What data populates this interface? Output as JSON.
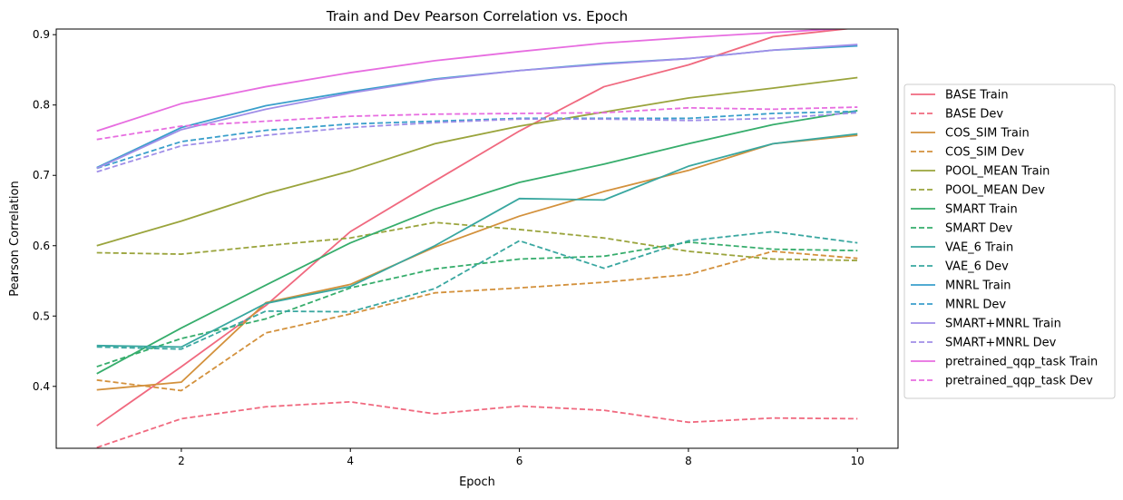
{
  "chart_data": {
    "type": "line",
    "title": "Train and Dev Pearson Correlation vs. Epoch",
    "xlabel": "Epoch",
    "ylabel": "Pearson Correlation",
    "xlim": [
      0.52,
      10.48
    ],
    "ylim": [
      0.312,
      0.908
    ],
    "xticks": [
      2,
      4,
      6,
      8,
      10
    ],
    "xtick_labels": [
      "2",
      "4",
      "6",
      "8",
      "10"
    ],
    "yticks": [
      0.4,
      0.5,
      0.6,
      0.7,
      0.8,
      0.9
    ],
    "ytick_labels": [
      "0.4",
      "0.5",
      "0.6",
      "0.7",
      "0.8",
      "0.9"
    ],
    "grid": false,
    "legend_position": "outside-right",
    "x": [
      1,
      2,
      3,
      4,
      5,
      6,
      7,
      8,
      9,
      10
    ],
    "series": [
      {
        "name": "BASE Train",
        "color": "#f0697f",
        "dash": "solid",
        "values": [
          0.344,
          0.428,
          0.515,
          0.62,
          0.692,
          0.763,
          0.826,
          0.857,
          0.897,
          0.91
        ]
      },
      {
        "name": "BASE Dev",
        "color": "#f0697f",
        "dash": "dashed",
        "values": [
          0.313,
          0.354,
          0.371,
          0.378,
          0.361,
          0.372,
          0.366,
          0.349,
          0.355,
          0.354
        ]
      },
      {
        "name": "COS_SIM Train",
        "color": "#d3913c",
        "dash": "solid",
        "values": [
          0.395,
          0.406,
          0.519,
          0.545,
          0.598,
          0.642,
          0.677,
          0.707,
          0.745,
          0.757
        ]
      },
      {
        "name": "COS_SIM Dev",
        "color": "#d3913c",
        "dash": "dashed",
        "values": [
          0.409,
          0.394,
          0.476,
          0.503,
          0.533,
          0.54,
          0.548,
          0.559,
          0.592,
          0.582
        ]
      },
      {
        "name": "POOL_MEAN Train",
        "color": "#9aa43c",
        "dash": "solid",
        "values": [
          0.6,
          0.635,
          0.674,
          0.706,
          0.745,
          0.77,
          0.79,
          0.81,
          0.824,
          0.839
        ]
      },
      {
        "name": "POOL_MEAN Dev",
        "color": "#9aa43c",
        "dash": "dashed",
        "values": [
          0.59,
          0.588,
          0.6,
          0.611,
          0.633,
          0.623,
          0.611,
          0.592,
          0.581,
          0.579
        ]
      },
      {
        "name": "SMART Train",
        "color": "#36ad6c",
        "dash": "solid",
        "values": [
          0.418,
          0.483,
          0.544,
          0.604,
          0.652,
          0.69,
          0.716,
          0.745,
          0.772,
          0.792
        ]
      },
      {
        "name": "SMART Dev",
        "color": "#36ad6c",
        "dash": "dashed",
        "values": [
          0.428,
          0.468,
          0.496,
          0.54,
          0.567,
          0.581,
          0.585,
          0.605,
          0.595,
          0.593
        ]
      },
      {
        "name": "VAE_6 Train",
        "color": "#39a7a0",
        "dash": "solid",
        "values": [
          0.458,
          0.456,
          0.518,
          0.542,
          0.6,
          0.667,
          0.665,
          0.713,
          0.745,
          0.759
        ]
      },
      {
        "name": "VAE_6 Dev",
        "color": "#39a7a0",
        "dash": "dashed",
        "values": [
          0.456,
          0.453,
          0.507,
          0.506,
          0.539,
          0.607,
          0.568,
          0.607,
          0.62,
          0.604
        ]
      },
      {
        "name": "MNRL Train",
        "color": "#3a9fcb",
        "dash": "solid",
        "values": [
          0.711,
          0.768,
          0.799,
          0.819,
          0.837,
          0.849,
          0.859,
          0.866,
          0.878,
          0.884
        ]
      },
      {
        "name": "MNRL Dev",
        "color": "#3a9fcb",
        "dash": "dashed",
        "values": [
          0.71,
          0.748,
          0.764,
          0.773,
          0.777,
          0.781,
          0.781,
          0.781,
          0.788,
          0.791
        ]
      },
      {
        "name": "SMART+MNRL Train",
        "color": "#a08ee8",
        "dash": "solid",
        "values": [
          0.71,
          0.765,
          0.794,
          0.817,
          0.836,
          0.849,
          0.858,
          0.866,
          0.878,
          0.886
        ]
      },
      {
        "name": "SMART+MNRL Dev",
        "color": "#a08ee8",
        "dash": "dashed",
        "values": [
          0.705,
          0.742,
          0.757,
          0.768,
          0.775,
          0.78,
          0.78,
          0.778,
          0.781,
          0.789
        ]
      },
      {
        "name": "pretrained_qqp_task Train",
        "color": "#e76de0",
        "dash": "solid",
        "values": [
          0.763,
          0.802,
          0.826,
          0.846,
          0.863,
          0.876,
          0.888,
          0.896,
          0.903,
          0.91
        ]
      },
      {
        "name": "pretrained_qqp_task Dev",
        "color": "#e76de0",
        "dash": "dashed",
        "values": [
          0.751,
          0.77,
          0.777,
          0.784,
          0.787,
          0.788,
          0.789,
          0.796,
          0.794,
          0.797
        ]
      }
    ]
  }
}
